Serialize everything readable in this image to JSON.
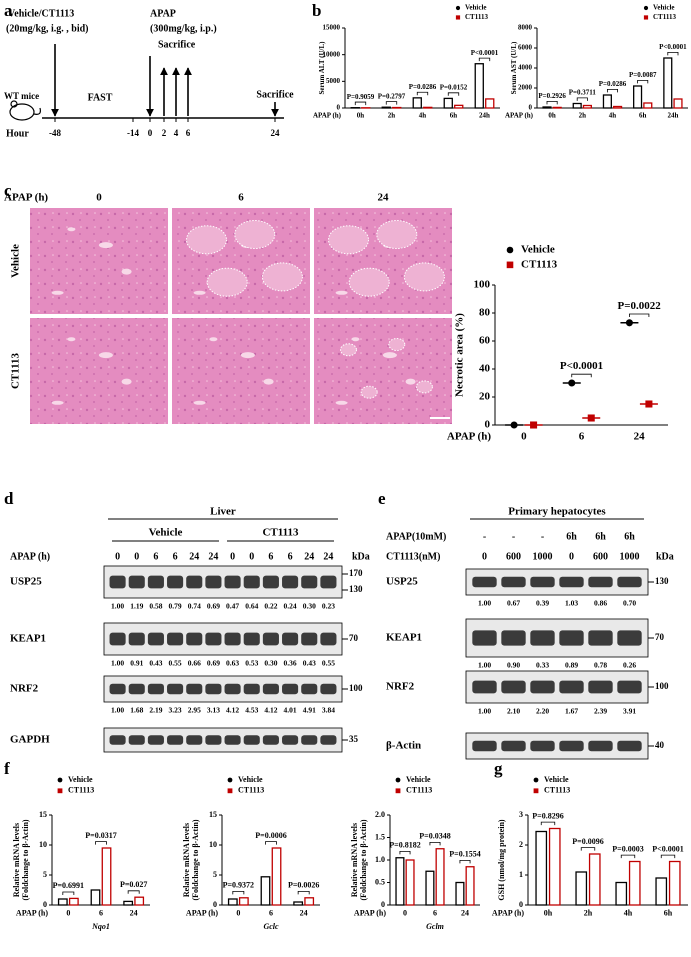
{
  "panel_labels": [
    "a",
    "b",
    "c",
    "d",
    "e",
    "f",
    "g"
  ],
  "timeline": {
    "treatment": "Vehicle/CT1113",
    "treatment_dose": "(20mg/kg, i.g. , bid)",
    "apap": "APAP",
    "apap_dose": "(300mg/kg, i.p.)",
    "sacrifice": [
      "Sacrifice",
      "Sacrifice"
    ],
    "fast": "FAST",
    "subject": "WT mice",
    "axis_label": "Hour",
    "hours": [
      -48,
      -14,
      0,
      2,
      4,
      6,
      24
    ]
  },
  "histology": {
    "axis_label": "APAP (h)",
    "columns": [
      "0",
      "6",
      "24"
    ],
    "rows": [
      "Vehicle",
      "CT1113"
    ]
  },
  "chart_data": [
    {
      "type": "bar",
      "y_label": "Serum ALT (U/L)",
      "x_label": "APAP (h)",
      "categories": [
        "0h",
        "2h",
        "4h",
        "6h",
        "24h"
      ],
      "series": [
        {
          "name": "Vehicle",
          "color": "#000000",
          "marker": "circle",
          "values": [
            60,
            150,
            1900,
            1800,
            8300
          ]
        },
        {
          "name": "CT1113",
          "color": "#c00000",
          "marker": "square",
          "values": [
            40,
            90,
            120,
            500,
            1700
          ]
        }
      ],
      "ylim": [
        0,
        15000
      ],
      "yticks": [
        0,
        5000,
        10000,
        15000
      ],
      "annotations": [
        {
          "category": "0h",
          "text": "P=0.9059",
          "color": "#000000"
        },
        {
          "category": "2h",
          "text": "P=0.2797",
          "color": "#000000"
        },
        {
          "category": "4h",
          "text": "P=0.0286",
          "color": "#1e88e5"
        },
        {
          "category": "6h",
          "text": "P=0.0152",
          "color": "#1e88e5"
        },
        {
          "category": "24h",
          "text": "P<0.0001",
          "color": "#000000"
        }
      ]
    },
    {
      "type": "bar",
      "y_label": "Serum AST (U/L)",
      "x_label": "APAP (h)",
      "categories": [
        "0h",
        "2h",
        "4h",
        "6h",
        "24h"
      ],
      "series": [
        {
          "name": "Vehicle",
          "color": "#000000",
          "marker": "circle",
          "values": [
            100,
            450,
            1300,
            2200,
            5000
          ]
        },
        {
          "name": "CT1113",
          "color": "#c00000",
          "marker": "square",
          "values": [
            60,
            250,
            150,
            500,
            900
          ]
        }
      ],
      "ylim": [
        0,
        8000
      ],
      "yticks": [
        0,
        2000,
        4000,
        6000,
        8000
      ],
      "annotations": [
        {
          "category": "0h",
          "text": "P=0.2926",
          "color": "#000000"
        },
        {
          "category": "2h",
          "text": "P=0.3711",
          "color": "#000000"
        },
        {
          "category": "4h",
          "text": "P=0.0286",
          "color": "#1e88e5"
        },
        {
          "category": "6h",
          "text": "P=0.0087",
          "color": "#1e88e5"
        },
        {
          "category": "24h",
          "text": "P<0.0001",
          "color": "#000000"
        }
      ]
    },
    {
      "type": "dot",
      "y_label": "Necrotic area (%)",
      "x_label": "APAP (h)",
      "categories": [
        "0",
        "6",
        "24"
      ],
      "series": [
        {
          "name": "Vehicle",
          "color": "#000000",
          "marker": "circle",
          "values": [
            0,
            30,
            73
          ]
        },
        {
          "name": "CT1113",
          "color": "#c00000",
          "marker": "square",
          "values": [
            0,
            5,
            15
          ]
        }
      ],
      "ylim": [
        0,
        100
      ],
      "yticks": [
        0,
        20,
        40,
        60,
        80,
        100
      ],
      "annotations": [
        {
          "category": "6",
          "text": "P<0.0001",
          "color": "#000000"
        },
        {
          "category": "24",
          "text": "P=0.0022",
          "color": "#1e88e5"
        }
      ]
    },
    {
      "type": "bar",
      "y_label": [
        "Relative mRNA levels",
        "(Foldchange to β-Actin)"
      ],
      "x_label": "APAP (h)",
      "x_title": "Nqo1",
      "categories": [
        "0",
        "6",
        "24"
      ],
      "series": [
        {
          "name": "Vehicle",
          "color": "#000000",
          "marker": "circle",
          "values": [
            1,
            2.5,
            0.6
          ]
        },
        {
          "name": "CT1113",
          "color": "#c00000",
          "marker": "square",
          "values": [
            1.1,
            9.5,
            1.3
          ]
        }
      ],
      "ylim": [
        0,
        15
      ],
      "yticks": [
        0,
        5,
        10,
        15
      ],
      "annotations": [
        {
          "category": "0",
          "text": "P=0.6991",
          "color": "#1e88e5"
        },
        {
          "category": "6",
          "text": "P=0.0317",
          "color": "#1e88e5"
        },
        {
          "category": "24",
          "text": "P=0.027",
          "color": "#000000"
        }
      ]
    },
    {
      "type": "bar",
      "y_label": [
        "Relative mRNA levels",
        "(Foldchange to β-Actin)"
      ],
      "x_label": "APAP (h)",
      "x_title": "Gclc",
      "categories": [
        "0",
        "6",
        "24"
      ],
      "series": [
        {
          "name": "Vehicle",
          "color": "#000000",
          "marker": "circle",
          "values": [
            1,
            4.7,
            0.5
          ]
        },
        {
          "name": "CT1113",
          "color": "#c00000",
          "marker": "square",
          "values": [
            1.2,
            9.5,
            1.2
          ]
        }
      ],
      "ylim": [
        0,
        15
      ],
      "yticks": [
        0,
        5,
        10,
        15
      ],
      "annotations": [
        {
          "category": "0",
          "text": "P=0.9372",
          "color": "#1e88e5"
        },
        {
          "category": "6",
          "text": "P=0.0006",
          "color": "#000000"
        },
        {
          "category": "24",
          "text": "P=0.0026",
          "color": "#000000"
        }
      ]
    },
    {
      "type": "bar",
      "y_label": [
        "Relative mRNA levels",
        "(Foldchange to β-Actin)"
      ],
      "x_label": "APAP (h)",
      "x_title": "Gclm",
      "categories": [
        "0",
        "6",
        "24"
      ],
      "series": [
        {
          "name": "Vehicle",
          "color": "#000000",
          "marker": "circle",
          "values": [
            1.05,
            0.75,
            0.5
          ]
        },
        {
          "name": "CT1113",
          "color": "#c00000",
          "marker": "square",
          "values": [
            1.0,
            1.25,
            0.85
          ]
        }
      ],
      "ylim": [
        0,
        2
      ],
      "yticks": [
        0,
        0.5,
        {
          "value": 1,
          "label": "1.0"
        },
        1.5,
        {
          "value": 2,
          "label": "2.0"
        }
      ],
      "annotations": [
        {
          "category": "0",
          "text": "P=0.8182",
          "color": "#000000"
        },
        {
          "category": "6",
          "text": "P=0.0348",
          "color": "#000000"
        },
        {
          "category": "24",
          "text": "P=0.1554",
          "color": "#000000"
        }
      ]
    },
    {
      "type": "bar",
      "y_label": "GSH (nmol/mg protein)",
      "x_label": "APAP (h)",
      "categories": [
        "0h",
        "2h",
        "4h",
        "6h"
      ],
      "series": [
        {
          "name": "Vehicle",
          "color": "#000000",
          "marker": "circle",
          "values": [
            2.45,
            1.1,
            0.75,
            0.9
          ]
        },
        {
          "name": "CT1113",
          "color": "#c00000",
          "marker": "square",
          "values": [
            2.55,
            1.7,
            1.45,
            1.45
          ]
        }
      ],
      "ylim": [
        0,
        3
      ],
      "yticks": [
        0,
        1,
        2,
        3
      ],
      "annotations": [
        {
          "category": "0h",
          "text": "P=0.8296",
          "color": "#000000"
        },
        {
          "category": "2h",
          "text": "P=0.0096",
          "color": "#000000"
        },
        {
          "category": "4h",
          "text": "P=0.0003",
          "color": "#000000"
        },
        {
          "category": "6h",
          "text": "P<0.0001",
          "color": "#000000"
        }
      ]
    }
  ],
  "blot_liver": {
    "title": "Liver",
    "groups": [
      "Vehicle",
      "CT1113"
    ],
    "lane_rows": [
      {
        "label": "APAP (h)",
        "lanes": [
          "0",
          "0",
          "6",
          "6",
          "24",
          "24",
          "0",
          "0",
          "6",
          "6",
          "24",
          "24"
        ]
      }
    ],
    "kda": "kDa",
    "rows": [
      {
        "name": "USP25",
        "markers": [
          "170",
          "130"
        ],
        "quantification": [
          "1.00",
          "1.19",
          "0.58",
          "0.79",
          "0.74",
          "0.69",
          "0.47",
          "0.64",
          "0.22",
          "0.24",
          "0.30",
          "0.23"
        ]
      },
      {
        "name": "KEAP1",
        "markers": [
          "70"
        ],
        "quantification": [
          "1.00",
          "0.91",
          "0.43",
          "0.55",
          "0.66",
          "0.69",
          "0.63",
          "0.53",
          "0.30",
          "0.36",
          "0.43",
          "0.55"
        ]
      },
      {
        "name": "NRF2",
        "markers": [
          "100"
        ],
        "quantification": [
          "1.00",
          "1.68",
          "2.19",
          "3.23",
          "2.95",
          "3.13",
          "4.12",
          "4.53",
          "4.12",
          "4.01",
          "4.91",
          "3.84"
        ]
      },
      {
        "name": "GAPDH",
        "markers": [
          "35"
        ]
      }
    ]
  },
  "blot_hepatocytes": {
    "title": "Primary hepatocytes",
    "lane_rows": [
      {
        "label": "APAP(10mM)",
        "lanes": [
          "-",
          "-",
          "-",
          "6h",
          "6h",
          "6h"
        ]
      },
      {
        "label": "CT1113(nM)",
        "lanes": [
          "0",
          "600",
          "1000",
          "0",
          "600",
          "1000"
        ]
      }
    ],
    "kda": "kDa",
    "rows": [
      {
        "name": "USP25",
        "markers": [
          "130"
        ],
        "quantification": [
          "1.00",
          "0.67",
          "0.39",
          "1.03",
          "0.86",
          "0.70"
        ]
      },
      {
        "name": "KEAP1",
        "markers": [
          "70"
        ],
        "quantification": [
          "1.00",
          "0.90",
          "0.33",
          "0.89",
          "0.78",
          "0.26"
        ]
      },
      {
        "name": "NRF2",
        "markers": [
          "100"
        ],
        "quantification": [
          "1.00",
          "2.10",
          "2.20",
          "1.67",
          "2.39",
          "3.91"
        ]
      },
      {
        "name": "β-Actin",
        "markers": [
          "40"
        ]
      }
    ]
  }
}
